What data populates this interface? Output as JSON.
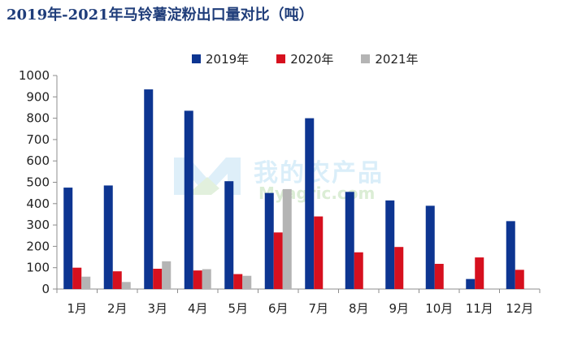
{
  "chart_data": {
    "type": "bar",
    "title": "2019年-2021年马铃薯淀粉出口量对比（吨）",
    "categories": [
      "1月",
      "2月",
      "3月",
      "4月",
      "5月",
      "6月",
      "7月",
      "8月",
      "9月",
      "10月",
      "11月",
      "12月"
    ],
    "series": [
      {
        "name": "2019年",
        "color": "#0d3591",
        "values": [
          475,
          485,
          935,
          835,
          505,
          450,
          800,
          455,
          415,
          390,
          47,
          318
        ]
      },
      {
        "name": "2020年",
        "color": "#d6101e",
        "values": [
          100,
          83,
          95,
          87,
          70,
          265,
          340,
          172,
          197,
          118,
          148,
          90
        ]
      },
      {
        "name": "2021年",
        "color": "#b4b4b4",
        "values": [
          58,
          33,
          130,
          93,
          62,
          468,
          null,
          null,
          null,
          null,
          null,
          null
        ]
      }
    ],
    "ylim": [
      0,
      1000
    ],
    "yticks": [
      0,
      100,
      200,
      300,
      400,
      500,
      600,
      700,
      800,
      900,
      1000
    ],
    "legend_position": "top",
    "grid": false
  },
  "watermark": {
    "text": "我的农产品",
    "subtext": "Myagric.com"
  }
}
